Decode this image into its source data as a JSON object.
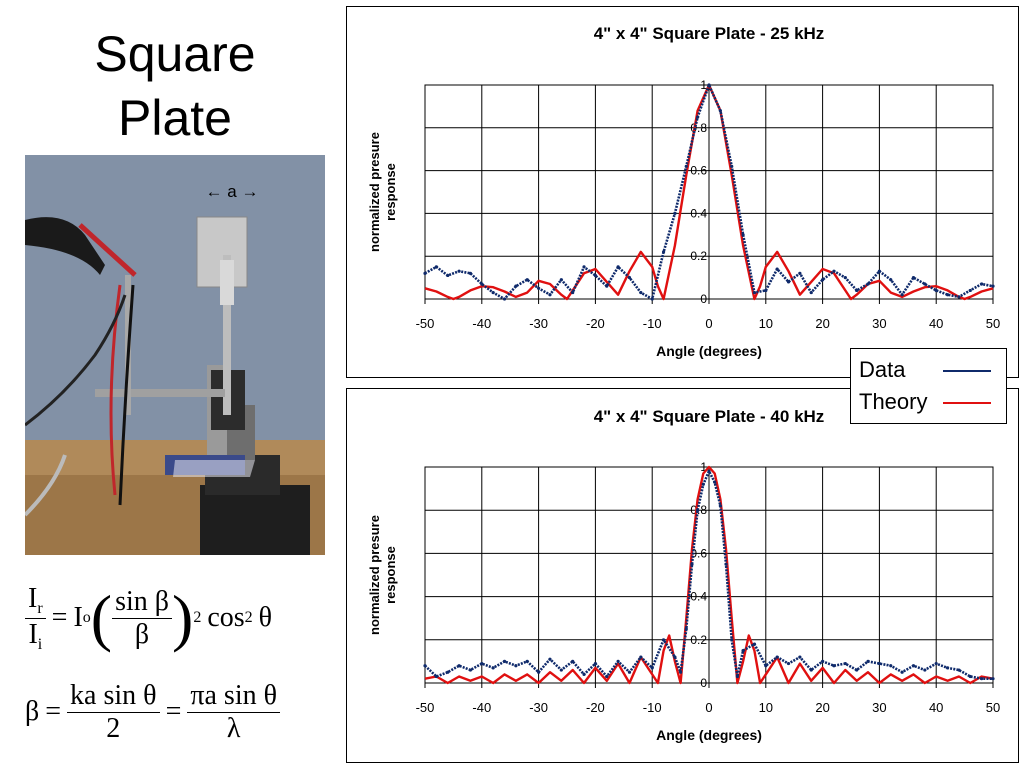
{
  "slide": {
    "title_line1": "Square",
    "title_line2": "Plate",
    "photo_label": "a"
  },
  "legend": {
    "items": [
      "Data",
      "Theory"
    ]
  },
  "colors": {
    "data": "#0f2a6b",
    "theory": "#e01010"
  },
  "formula": {
    "lhs_num": "I",
    "lhs_num_sub": "r",
    "lhs_den": "I",
    "lhs_den_sub": "i",
    "eq": "=",
    "io": "I",
    "io_sub": "o",
    "sinc_num": "sin β",
    "sinc_den": "β",
    "power": "2",
    "cos": "cos",
    "cos_power": "2",
    "theta": "θ",
    "beta": "β",
    "ka_num": "ka sin θ",
    "ka_den": "2",
    "pi_num": "πa sin θ",
    "pi_den": "λ"
  },
  "chart_data": [
    {
      "type": "line",
      "title": "4\" x 4\" Square Plate - 25 kHz",
      "xlabel": "Angle (degrees)",
      "ylabel": "normalized presure response",
      "xlim": [
        -50,
        50
      ],
      "ylim": [
        0,
        1
      ],
      "xticks": [
        "-50",
        "-40",
        "-30",
        "-20",
        "-10",
        "0",
        "10",
        "20",
        "30",
        "40",
        "50"
      ],
      "yticks": [
        "0",
        "0.2",
        "0.4",
        "0.6",
        "0.8",
        "1"
      ],
      "grid": true,
      "legend": "outside bottom-right",
      "series": [
        {
          "name": "Theory",
          "x": [
            -50,
            -48,
            -46,
            -45,
            -44,
            -42,
            -40,
            -38,
            -36,
            -34,
            -32,
            -30,
            -28,
            -26,
            -25,
            -24,
            -22,
            -20,
            -18,
            -16,
            -14,
            -12,
            -10,
            -9,
            -8,
            -6,
            -4,
            -2,
            0,
            2,
            4,
            6,
            8,
            9,
            10,
            12,
            14,
            16,
            18,
            20,
            22,
            24,
            25,
            26,
            28,
            30,
            32,
            34,
            36,
            38,
            40,
            42,
            44,
            45,
            46,
            48,
            50
          ],
          "values": [
            0.05,
            0.035,
            0.01,
            0.0,
            0.01,
            0.04,
            0.06,
            0.055,
            0.035,
            0.01,
            0.03,
            0.085,
            0.07,
            0.02,
            0.0,
            0.04,
            0.12,
            0.14,
            0.08,
            0.02,
            0.13,
            0.22,
            0.15,
            0.06,
            0.0,
            0.25,
            0.58,
            0.88,
            1.0,
            0.88,
            0.58,
            0.25,
            0.0,
            0.06,
            0.15,
            0.22,
            0.13,
            0.02,
            0.08,
            0.14,
            0.12,
            0.04,
            0.0,
            0.02,
            0.07,
            0.085,
            0.03,
            0.01,
            0.035,
            0.055,
            0.06,
            0.04,
            0.01,
            0.0,
            0.01,
            0.035,
            0.05
          ]
        },
        {
          "name": "Data",
          "x": [
            -50,
            -48,
            -46,
            -44,
            -42,
            -40,
            -38,
            -36,
            -34,
            -32,
            -30,
            -28,
            -26,
            -24,
            -22,
            -20,
            -18,
            -16,
            -14,
            -12,
            -10,
            -8,
            -6,
            -4,
            -2,
            0,
            2,
            4,
            6,
            8,
            10,
            12,
            14,
            16,
            18,
            20,
            22,
            24,
            26,
            28,
            30,
            32,
            34,
            36,
            38,
            40,
            42,
            44,
            46,
            48,
            50
          ],
          "values": [
            0.12,
            0.15,
            0.11,
            0.13,
            0.12,
            0.07,
            0.03,
            0.0,
            0.06,
            0.09,
            0.05,
            0.02,
            0.09,
            0.03,
            0.15,
            0.11,
            0.06,
            0.15,
            0.1,
            0.03,
            0.0,
            0.22,
            0.4,
            0.62,
            0.85,
            1.0,
            0.88,
            0.62,
            0.3,
            0.03,
            0.04,
            0.14,
            0.08,
            0.12,
            0.03,
            0.09,
            0.13,
            0.1,
            0.04,
            0.07,
            0.13,
            0.09,
            0.02,
            0.1,
            0.07,
            0.04,
            0.02,
            0.01,
            0.04,
            0.07,
            0.06
          ]
        }
      ]
    },
    {
      "type": "line",
      "title": "4\" x 4\" Square Plate - 40 kHz",
      "xlabel": "Angle (degrees)",
      "ylabel": "normalized presure response",
      "xlim": [
        -50,
        50
      ],
      "ylim": [
        0,
        1
      ],
      "xticks": [
        "-50",
        "-40",
        "-30",
        "-20",
        "-10",
        "0",
        "10",
        "20",
        "30",
        "40",
        "50"
      ],
      "yticks": [
        "0",
        "0.2",
        "0.4",
        "0.6",
        "0.8",
        "1"
      ],
      "grid": true,
      "legend": "outside top-right",
      "series": [
        {
          "name": "Theory",
          "x": [
            -50,
            -48,
            -46,
            -44,
            -42,
            -40,
            -38,
            -36,
            -34,
            -32,
            -30,
            -28,
            -26,
            -24,
            -22,
            -20,
            -18,
            -16,
            -14,
            -12,
            -10,
            -9,
            -8,
            -7,
            -6,
            -5,
            -4,
            -3,
            -2,
            -1,
            0,
            1,
            2,
            3,
            4,
            5,
            6,
            7,
            8,
            9,
            10,
            12,
            14,
            16,
            18,
            20,
            22,
            24,
            26,
            28,
            30,
            32,
            34,
            36,
            38,
            40,
            42,
            44,
            46,
            48,
            50
          ],
          "values": [
            0.02,
            0.03,
            0.0,
            0.03,
            0.01,
            0.03,
            0.0,
            0.04,
            0.01,
            0.04,
            0.0,
            0.05,
            0.01,
            0.06,
            0.0,
            0.07,
            0.01,
            0.09,
            0.0,
            0.12,
            0.04,
            0.0,
            0.15,
            0.22,
            0.1,
            0.0,
            0.3,
            0.62,
            0.85,
            0.97,
            1.0,
            0.97,
            0.85,
            0.62,
            0.3,
            0.0,
            0.1,
            0.22,
            0.15,
            0.0,
            0.04,
            0.12,
            0.0,
            0.09,
            0.01,
            0.07,
            0.0,
            0.06,
            0.01,
            0.05,
            0.0,
            0.04,
            0.01,
            0.04,
            0.0,
            0.03,
            0.01,
            0.03,
            0.0,
            0.03,
            0.02
          ]
        },
        {
          "name": "Data",
          "x": [
            -50,
            -48,
            -46,
            -44,
            -42,
            -40,
            -38,
            -36,
            -34,
            -32,
            -30,
            -28,
            -26,
            -24,
            -22,
            -20,
            -18,
            -16,
            -14,
            -12,
            -10,
            -8,
            -6,
            -5,
            -4,
            -3,
            -2,
            -1,
            0,
            1,
            2,
            3,
            4,
            5,
            6,
            8,
            10,
            12,
            14,
            16,
            18,
            20,
            22,
            24,
            26,
            28,
            30,
            32,
            34,
            36,
            38,
            40,
            42,
            44,
            46,
            48,
            50
          ],
          "values": [
            0.08,
            0.03,
            0.05,
            0.08,
            0.06,
            0.09,
            0.07,
            0.1,
            0.08,
            0.1,
            0.05,
            0.11,
            0.06,
            0.1,
            0.04,
            0.09,
            0.03,
            0.1,
            0.05,
            0.12,
            0.07,
            0.2,
            0.12,
            0.05,
            0.25,
            0.55,
            0.8,
            0.92,
            0.98,
            0.93,
            0.82,
            0.55,
            0.2,
            0.03,
            0.15,
            0.18,
            0.08,
            0.12,
            0.09,
            0.12,
            0.06,
            0.1,
            0.08,
            0.09,
            0.06,
            0.1,
            0.09,
            0.08,
            0.05,
            0.08,
            0.06,
            0.09,
            0.07,
            0.06,
            0.03,
            0.02,
            0.02
          ]
        }
      ]
    }
  ]
}
